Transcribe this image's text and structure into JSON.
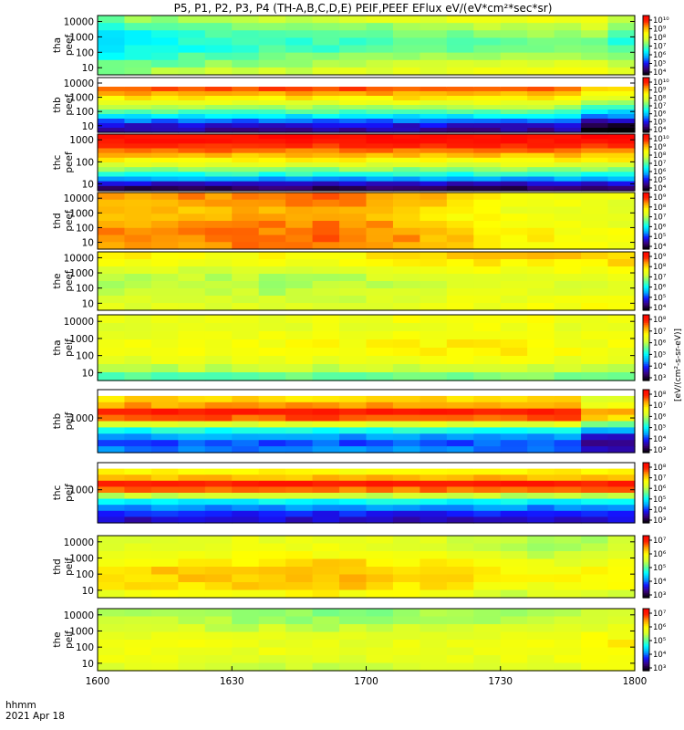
{
  "chart_data": {
    "type": "heatmap",
    "title": "P5, P1, P2, P3, P4 (TH-A,B,C,D,E) PEIF,PEEF EFlux eV/(eV*cm²*sec*sr)",
    "xlabel": "hhmm",
    "date_label": "2021 Apr 18",
    "x_tick_labels": [
      "1600",
      "1630",
      "1700",
      "1730",
      "1800"
    ],
    "x_range": [
      "16:00",
      "18:00"
    ],
    "y_scale": "log",
    "colorbar_unit": "[eV/(cm²-s-sr-eV)]",
    "colormap": [
      "#000000",
      "#3a007a",
      "#1414ff",
      "#00a8ff",
      "#00ffff",
      "#6cff8c",
      "#d8ff2e",
      "#ffff00",
      "#ffa600",
      "#ff2200",
      "#ff0000"
    ],
    "panels": [
      {
        "ylabel": [
          "tha",
          "peef"
        ],
        "y_ticks": [
          "10",
          "100",
          "1000",
          "10000"
        ],
        "cb_ticks": [
          "10⁴",
          "10⁵",
          "10⁶",
          "10⁷",
          "10⁸",
          "10⁹",
          "10¹⁰"
        ],
        "cols": 20,
        "rows": 8,
        "base": [
          0.57,
          0.5,
          0.45,
          0.43,
          0.44,
          0.48,
          0.53,
          0.58
        ],
        "ctrl": [
          [
            0.0,
            -0.06
          ],
          [
            0.2,
            0.0
          ],
          [
            0.5,
            0.04
          ],
          [
            0.8,
            0.08
          ],
          [
            0.95,
            0.09
          ],
          [
            1.0,
            -0.05
          ]
        ]
      },
      {
        "ylabel": [
          "thb",
          "peef"
        ],
        "y_ticks": [
          "10",
          "100",
          "1000",
          "10000"
        ],
        "cb_ticks": [
          "10⁴",
          "10⁵",
          "10⁶",
          "10⁷",
          "10⁸",
          "10⁹",
          "10¹⁰"
        ],
        "cols": 20,
        "rows": 12,
        "blank_top": 2,
        "base": [
          0.97,
          0.93,
          0.86,
          0.79,
          0.72,
          0.64,
          0.56,
          0.47,
          0.38,
          0.26,
          0.17,
          0.12
        ],
        "ctrl": [
          [
            0.0,
            0.0
          ],
          [
            0.88,
            0.0
          ],
          [
            0.9,
            -0.1
          ],
          [
            1.0,
            -0.12
          ]
        ]
      },
      {
        "ylabel": [
          "thc",
          "peef"
        ],
        "y_ticks": [
          "10",
          "100",
          "1000"
        ],
        "cb_ticks": [
          "10⁴",
          "10⁵",
          "10⁶",
          "10⁷",
          "10⁸",
          "10⁹",
          "10¹⁰"
        ],
        "cols": 20,
        "rows": 12,
        "base": [
          0.97,
          0.95,
          0.9,
          0.84,
          0.77,
          0.7,
          0.62,
          0.53,
          0.43,
          0.3,
          0.16,
          0.08
        ],
        "ctrl": [
          [
            0.0,
            0.0
          ],
          [
            1.0,
            0.0
          ]
        ]
      },
      {
        "ylabel": [
          "thd",
          "peef"
        ],
        "y_ticks": [
          "10",
          "100",
          "1000",
          "10000"
        ],
        "cb_ticks": [
          "10⁴",
          "10⁵",
          "10⁶",
          "10⁷",
          "10⁸",
          "10⁹"
        ],
        "cols": 20,
        "rows": 8,
        "base": [
          0.8,
          0.78,
          0.76,
          0.77,
          0.79,
          0.81,
          0.82,
          0.8
        ],
        "ctrl": [
          [
            0.0,
            0.0
          ],
          [
            0.45,
            0.04
          ],
          [
            0.6,
            -0.02
          ],
          [
            0.75,
            -0.1
          ],
          [
            1.0,
            -0.14
          ]
        ]
      },
      {
        "ylabel": [
          "the",
          "peef"
        ],
        "y_ticks": [
          "10",
          "100",
          "1000",
          "10000"
        ],
        "cb_ticks": [
          "10⁴",
          "10⁵",
          "10⁶",
          "10⁷",
          "10⁸",
          "10⁹"
        ],
        "cols": 20,
        "rows": 8,
        "base": [
          0.7,
          0.67,
          0.62,
          0.58,
          0.57,
          0.58,
          0.6,
          0.62
        ],
        "ctrl": [
          [
            0.0,
            0.0
          ],
          [
            0.4,
            -0.01
          ],
          [
            0.7,
            0.05
          ],
          [
            1.0,
            0.06
          ]
        ]
      },
      {
        "ylabel": [
          "tha",
          "peif"
        ],
        "y_ticks": [
          "10",
          "100",
          "1000",
          "10000"
        ],
        "cb_ticks": [
          "10³",
          "10⁴",
          "10⁵",
          "10⁶",
          "10⁷",
          "10⁸"
        ],
        "cols": 20,
        "rows": 8,
        "base": [
          0.64,
          0.62,
          0.64,
          0.66,
          0.66,
          0.63,
          0.57,
          0.48
        ],
        "ctrl": [
          [
            0.0,
            0.0
          ],
          [
            0.5,
            0.03
          ],
          [
            0.75,
            0.05
          ],
          [
            1.0,
            0.0
          ]
        ]
      },
      {
        "ylabel": [
          "thb",
          "peif"
        ],
        "y_ticks": [
          "1000"
        ],
        "cb_ticks": [
          "10³",
          "10⁴",
          "10⁵",
          "10⁶",
          "10⁷",
          "10⁸"
        ],
        "cols": 20,
        "rows": 10,
        "blank_top": 1,
        "base": [
          0.7,
          0.74,
          0.8,
          0.92,
          0.86,
          0.62,
          0.42,
          0.3,
          0.24,
          0.27
        ],
        "ctrl": [
          [
            0.0,
            0.0
          ],
          [
            0.88,
            0.0
          ],
          [
            0.9,
            -0.12
          ],
          [
            1.0,
            -0.12
          ]
        ]
      },
      {
        "ylabel": [
          "thc",
          "peif"
        ],
        "y_ticks": [
          "1000"
        ],
        "cb_ticks": [
          "10³",
          "10⁴",
          "10⁵",
          "10⁶",
          "10⁷",
          "10⁸"
        ],
        "cols": 20,
        "rows": 10,
        "blank_top": 1,
        "base": [
          0.66,
          0.7,
          0.78,
          0.92,
          0.84,
          0.58,
          0.4,
          0.28,
          0.2,
          0.16
        ],
        "ctrl": [
          [
            0.0,
            0.0
          ],
          [
            1.0,
            0.0
          ]
        ]
      },
      {
        "ylabel": [
          "thd",
          "peif"
        ],
        "y_ticks": [
          "10",
          "100",
          "1000",
          "10000"
        ],
        "cb_ticks": [
          "10³",
          "10⁴",
          "10⁵",
          "10⁶",
          "10⁷"
        ],
        "cols": 20,
        "rows": 8,
        "base": [
          0.62,
          0.62,
          0.65,
          0.7,
          0.74,
          0.74,
          0.72,
          0.66
        ],
        "ctrl": [
          [
            0.0,
            0.0
          ],
          [
            0.45,
            0.04
          ],
          [
            0.65,
            0.0
          ],
          [
            0.8,
            -0.06
          ],
          [
            1.0,
            -0.04
          ]
        ]
      },
      {
        "ylabel": [
          "the",
          "peif"
        ],
        "y_ticks": [
          "10",
          "100",
          "1000",
          "10000"
        ],
        "cb_ticks": [
          "10³",
          "10⁴",
          "10⁵",
          "10⁶",
          "10⁷"
        ],
        "cols": 20,
        "rows": 8,
        "base": [
          0.57,
          0.58,
          0.62,
          0.66,
          0.68,
          0.68,
          0.66,
          0.63
        ],
        "ctrl": [
          [
            0.0,
            0.0
          ],
          [
            0.4,
            -0.04
          ],
          [
            0.8,
            -0.01
          ],
          [
            1.0,
            0.03
          ]
        ]
      }
    ]
  }
}
